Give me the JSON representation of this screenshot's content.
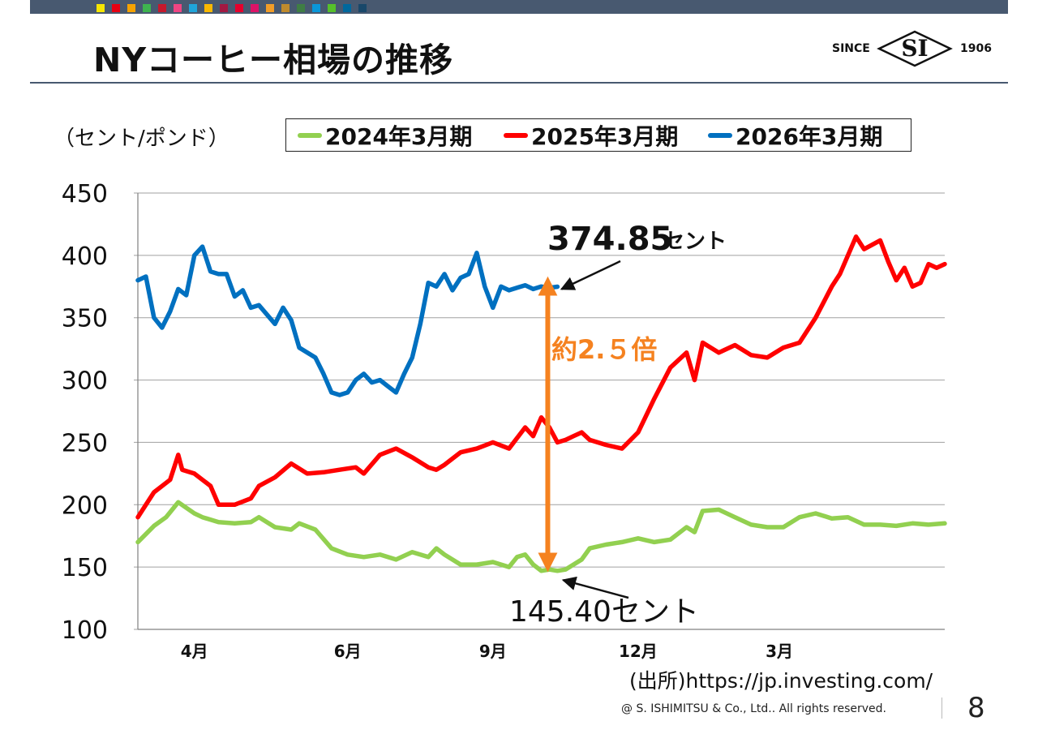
{
  "header": {
    "title": "NYコーヒー相場の推移",
    "palette": [
      "#f7e600",
      "#e60012",
      "#f5a200",
      "#3eb34f",
      "#c5192d",
      "#ef4583",
      "#1fa5da",
      "#f9b800",
      "#a21942",
      "#e5002d",
      "#dd1367",
      "#f29d28",
      "#bf8b2e",
      "#3f7e44",
      "#0a97d9",
      "#56c02b",
      "#00689d",
      "#19486a"
    ],
    "logo": {
      "since": "SINCE",
      "mark": "SI",
      "year": "1906"
    }
  },
  "unit_label": "（セント/ポンド）",
  "legend": [
    {
      "label": "2024年3月期",
      "color": "#92d050"
    },
    {
      "label": "2025年3月期",
      "color": "#ff0000"
    },
    {
      "label": "2026年3月期",
      "color": "#0070c0"
    }
  ],
  "chart_data": {
    "type": "line",
    "title": "",
    "xlabel": "",
    "ylabel": "（セント/ポンド）",
    "ylim": [
      100,
      450
    ],
    "yticks": [
      "450",
      "400",
      "350",
      "300",
      "250",
      "200",
      "150",
      "100"
    ],
    "grid": true,
    "x_domain": [
      0,
      1
    ],
    "x_ticks": [
      {
        "label": "4月",
        "x": 0.07
      },
      {
        "label": "6月",
        "x": 0.26
      },
      {
        "label": "9月",
        "x": 0.44
      },
      {
        "label": "12月",
        "x": 0.62
      },
      {
        "label": "3月",
        "x": 0.795
      }
    ],
    "series": [
      {
        "name": "2024年3月期",
        "color": "#92d050",
        "x": [
          0.0,
          0.02,
          0.035,
          0.045,
          0.05,
          0.07,
          0.08,
          0.1,
          0.12,
          0.14,
          0.15,
          0.17,
          0.19,
          0.2,
          0.22,
          0.24,
          0.26,
          0.28,
          0.3,
          0.32,
          0.34,
          0.36,
          0.37,
          0.38,
          0.4,
          0.42,
          0.44,
          0.46,
          0.47,
          0.48,
          0.49,
          0.5,
          0.51,
          0.52,
          0.53,
          0.55,
          0.56,
          0.58,
          0.6,
          0.62,
          0.64,
          0.66,
          0.68,
          0.69,
          0.7,
          0.72,
          0.74,
          0.76,
          0.78,
          0.8,
          0.82,
          0.84,
          0.86,
          0.88,
          0.9,
          0.92,
          0.94,
          0.96,
          0.98,
          1.0
        ],
        "values": [
          170,
          183,
          190,
          198,
          202,
          193,
          190,
          186,
          185,
          186,
          190,
          182,
          180,
          185,
          180,
          165,
          160,
          158,
          160,
          156,
          162,
          158,
          165,
          160,
          152,
          152,
          154,
          150,
          158,
          160,
          152,
          147,
          148,
          147,
          148,
          156,
          165,
          168,
          170,
          173,
          170,
          172,
          182,
          178,
          195,
          196,
          190,
          184,
          182,
          182,
          190,
          193,
          189,
          190,
          184,
          184,
          183,
          185,
          184,
          185
        ]
      },
      {
        "name": "2025年3月期",
        "color": "#ff0000",
        "x": [
          0.0,
          0.02,
          0.04,
          0.045,
          0.05,
          0.055,
          0.07,
          0.09,
          0.1,
          0.12,
          0.14,
          0.15,
          0.17,
          0.19,
          0.21,
          0.23,
          0.25,
          0.27,
          0.28,
          0.3,
          0.32,
          0.34,
          0.36,
          0.37,
          0.38,
          0.4,
          0.42,
          0.44,
          0.46,
          0.48,
          0.49,
          0.5,
          0.51,
          0.52,
          0.53,
          0.54,
          0.55,
          0.56,
          0.58,
          0.6,
          0.62,
          0.64,
          0.66,
          0.68,
          0.69,
          0.7,
          0.72,
          0.74,
          0.76,
          0.78,
          0.8,
          0.82,
          0.84,
          0.86,
          0.87,
          0.88,
          0.89,
          0.9,
          0.92,
          0.93,
          0.94,
          0.95,
          0.96,
          0.97,
          0.98,
          0.99,
          1.0
        ],
        "values": [
          190,
          210,
          220,
          230,
          240,
          228,
          225,
          215,
          200,
          200,
          205,
          215,
          222,
          233,
          225,
          226,
          228,
          230,
          225,
          240,
          245,
          238,
          230,
          228,
          232,
          242,
          245,
          250,
          245,
          262,
          255,
          270,
          262,
          250,
          252,
          255,
          258,
          252,
          248,
          245,
          258,
          285,
          310,
          322,
          300,
          330,
          322,
          328,
          320,
          318,
          326,
          330,
          350,
          375,
          385,
          400,
          415,
          405,
          412,
          395,
          380,
          390,
          375,
          378,
          393,
          390,
          393
        ]
      },
      {
        "name": "2026年3月期",
        "color": "#0070c0",
        "x": [
          0.0,
          0.01,
          0.02,
          0.03,
          0.04,
          0.05,
          0.06,
          0.07,
          0.08,
          0.09,
          0.1,
          0.11,
          0.12,
          0.13,
          0.14,
          0.15,
          0.17,
          0.18,
          0.19,
          0.2,
          0.22,
          0.23,
          0.24,
          0.25,
          0.26,
          0.27,
          0.28,
          0.29,
          0.3,
          0.31,
          0.32,
          0.33,
          0.34,
          0.35,
          0.36,
          0.37,
          0.38,
          0.39,
          0.4,
          0.41,
          0.42,
          0.43,
          0.44,
          0.45,
          0.46,
          0.47,
          0.48,
          0.49,
          0.5,
          0.51,
          0.52
        ],
        "values": [
          380,
          383,
          350,
          342,
          355,
          373,
          368,
          400,
          407,
          387,
          385,
          385,
          367,
          372,
          358,
          360,
          345,
          358,
          348,
          326,
          318,
          305,
          290,
          288,
          290,
          300,
          305,
          298,
          300,
          295,
          290,
          305,
          318,
          345,
          378,
          375,
          385,
          372,
          382,
          385,
          402,
          375,
          358,
          375,
          372,
          374,
          376,
          373,
          375,
          374,
          374.85
        ]
      }
    ],
    "annotations": [
      {
        "text": "374.85",
        "suffix": "セント",
        "series": "2026年3月期",
        "point": "last"
      },
      {
        "text": "145.40セント",
        "series": "2024年3月期",
        "at_x": 0.515
      },
      {
        "text": "約2.５倍",
        "kind": "double-arrow",
        "color": "#f58220",
        "from": 374.85,
        "to": 145.4,
        "at_x": 0.508
      }
    ]
  },
  "footer": {
    "source": "(出所)https://jp.investing.com/",
    "copyright": "@ S. ISHIMITSU & Co., Ltd.. All rights reserved.",
    "page_number": "8"
  }
}
